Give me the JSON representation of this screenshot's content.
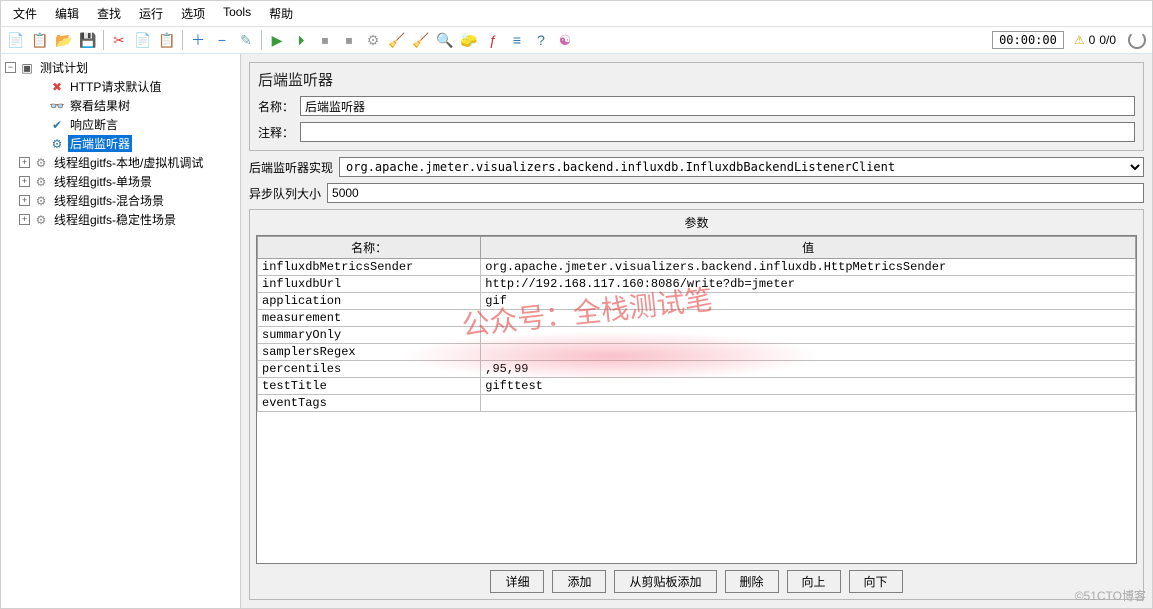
{
  "menubar": {
    "items": [
      "文件",
      "编辑",
      "查找",
      "运行",
      "选项",
      "Tools",
      "帮助"
    ]
  },
  "toolbar": {
    "icons": [
      {
        "name": "new-icon",
        "glyph": "📄",
        "color": "#5a9bd5"
      },
      {
        "name": "templates-icon",
        "glyph": "📋",
        "color": "#4a8"
      },
      {
        "name": "open-icon",
        "glyph": "📂",
        "color": "#e3b04b"
      },
      {
        "name": "save-icon",
        "glyph": "💾",
        "color": "#555"
      },
      {
        "name": "sep"
      },
      {
        "name": "cut-icon",
        "glyph": "✂",
        "color": "#d44"
      },
      {
        "name": "copy-icon",
        "glyph": "📄",
        "color": "#888"
      },
      {
        "name": "paste-icon",
        "glyph": "📋",
        "color": "#c90"
      },
      {
        "name": "sep"
      },
      {
        "name": "add-icon",
        "glyph": "＋",
        "color": "#2a7bd5"
      },
      {
        "name": "remove-icon",
        "glyph": "−",
        "color": "#2a7bd5"
      },
      {
        "name": "wand-icon",
        "glyph": "✎",
        "color": "#7aa"
      },
      {
        "name": "sep"
      },
      {
        "name": "start-icon",
        "glyph": "▶",
        "color": "#3a9b3a"
      },
      {
        "name": "start-no-pause-icon",
        "glyph": "⏵",
        "color": "#3a9b3a"
      },
      {
        "name": "stop-icon",
        "glyph": "⏹",
        "color": "#999"
      },
      {
        "name": "shutdown-icon",
        "glyph": "⏹",
        "color": "#999"
      },
      {
        "name": "remote-start-icon",
        "glyph": "⚙",
        "color": "#999"
      },
      {
        "name": "clear-icon",
        "glyph": "🧹",
        "color": "#b97"
      },
      {
        "name": "clear-all-icon",
        "glyph": "🧹",
        "color": "#b97"
      },
      {
        "name": "search-icon",
        "glyph": "🔍",
        "color": "#444"
      },
      {
        "name": "reset-search-icon",
        "glyph": "🧽",
        "color": "#ca3"
      },
      {
        "name": "function-helper-icon",
        "glyph": "ƒ",
        "color": "#c33"
      },
      {
        "name": "options-icon",
        "glyph": "≡",
        "color": "#37a"
      },
      {
        "name": "help-icon",
        "glyph": "?",
        "color": "#37a"
      },
      {
        "name": "heap-icon",
        "glyph": "☯",
        "color": "#c6a"
      }
    ],
    "timer": "00:00:00",
    "warning_icon": "⚠",
    "warning_count": "0",
    "thread_count": "0/0"
  },
  "tree": {
    "root": {
      "icon": "▣",
      "label": "测试计划",
      "color": "#555"
    },
    "children": [
      {
        "icon": "✖",
        "label": "HTTP请求默认值",
        "color": "#d44",
        "indent": 2,
        "toggle": null
      },
      {
        "icon": "👓",
        "label": "察看结果树",
        "color": "#b90",
        "indent": 2,
        "toggle": null
      },
      {
        "icon": "✔",
        "label": "响应断言",
        "color": "#37a",
        "indent": 2,
        "toggle": null
      },
      {
        "icon": "⚙",
        "label": "后端监听器",
        "color": "#37a",
        "indent": 2,
        "toggle": null,
        "selected": true
      },
      {
        "icon": "⚙",
        "label": "线程组gitfs-本地/虚拟机调试",
        "color": "#888",
        "indent": 1,
        "toggle": "+"
      },
      {
        "icon": "⚙",
        "label": "线程组gitfs-单场景",
        "color": "#888",
        "indent": 1,
        "toggle": "+"
      },
      {
        "icon": "⚙",
        "label": "线程组gitfs-混合场景",
        "color": "#888",
        "indent": 1,
        "toggle": "+"
      },
      {
        "icon": "⚙",
        "label": "线程组gitfs-稳定性场景",
        "color": "#888",
        "indent": 1,
        "toggle": "+"
      }
    ]
  },
  "panel": {
    "title": "后端监听器",
    "name_label": "名称：",
    "name_value": "后端监听器",
    "comment_label": "注释：",
    "comment_value": "",
    "impl_label": "后端监听器实现",
    "impl_value": "org.apache.jmeter.visualizers.backend.influxdb.InfluxdbBackendListenerClient",
    "queue_label": "异步队列大小",
    "queue_value": "5000"
  },
  "params": {
    "title": "参数",
    "columns": [
      "名称：",
      "值"
    ],
    "rows": [
      [
        "influxdbMetricsSender",
        "org.apache.jmeter.visualizers.backend.influxdb.HttpMetricsSender"
      ],
      [
        "influxdbUrl",
        "http://192.168.117.160:8086/write?db=jmeter"
      ],
      [
        "application",
        "gif"
      ],
      [
        "measurement",
        ""
      ],
      [
        "summaryOnly",
        ""
      ],
      [
        "samplersRegex",
        ""
      ],
      [
        "percentiles",
        ",95,99"
      ],
      [
        "testTitle",
        "gifttest"
      ],
      [
        "eventTags",
        ""
      ]
    ],
    "buttons": [
      "详细",
      "添加",
      "从剪贴板添加",
      "删除",
      "向上",
      "向下"
    ]
  },
  "watermark": "公众号：全栈测试笔",
  "copyright": "©51CTO博客",
  "colors": {
    "selection_bg": "#0a73d8",
    "border": "#b8b8b8"
  }
}
